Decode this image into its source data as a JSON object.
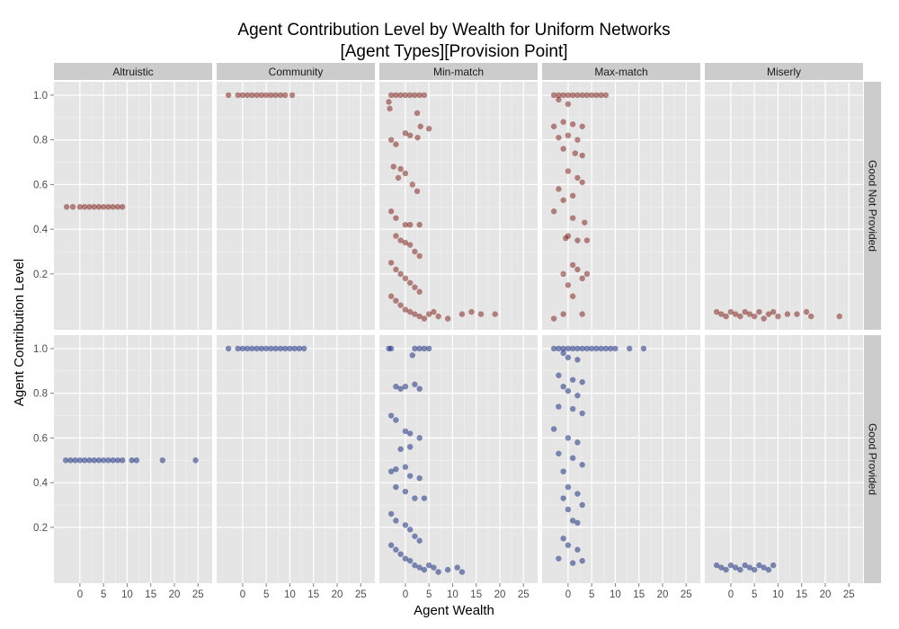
{
  "chart_data": {
    "type": "scatter",
    "title_line1": "Agent Contribution Level by Wealth for Uniform Networks",
    "title_line2": "[Agent Types][Provision Point]",
    "xlabel": "Agent Wealth",
    "ylabel": "Agent Contribution Level",
    "xlim": [
      -5.5,
      28
    ],
    "ylim": [
      -0.05,
      1.06
    ],
    "x_ticks": [
      0,
      5,
      10,
      15,
      20,
      25
    ],
    "x_tick_labels": [
      "0",
      "5",
      "10",
      "15",
      "20",
      "25"
    ],
    "y_ticks": [
      0.2,
      0.4,
      0.6,
      0.8,
      1.0
    ],
    "y_tick_labels": [
      "0.2",
      "0.4",
      "0.6",
      "0.8",
      "1.0"
    ],
    "grid": true,
    "columns": [
      "Altruistic",
      "Community",
      "Min-match",
      "Max-match",
      "Miserly"
    ],
    "rows": [
      "Good Not Provided",
      "Good Provided"
    ],
    "row_colors": [
      "#7a1610",
      "#0b1f78"
    ],
    "panels": [
      {
        "column": 0,
        "row": 0,
        "points": [
          [
            -2.8,
            0.5
          ],
          [
            -1.5,
            0.5
          ],
          [
            0,
            0.5
          ],
          [
            1,
            0.5
          ],
          [
            2,
            0.5
          ],
          [
            3,
            0.5
          ],
          [
            4,
            0.5
          ],
          [
            5,
            0.5
          ],
          [
            6,
            0.5
          ],
          [
            7,
            0.5
          ],
          [
            8,
            0.5
          ],
          [
            9,
            0.5
          ]
        ]
      },
      {
        "column": 1,
        "row": 0,
        "points": [
          [
            -3,
            1.0
          ],
          [
            -1,
            1.0
          ],
          [
            0,
            1.0
          ],
          [
            1,
            1.0
          ],
          [
            2,
            1.0
          ],
          [
            3,
            1.0
          ],
          [
            4,
            1.0
          ],
          [
            5,
            1.0
          ],
          [
            6,
            1.0
          ],
          [
            7,
            1.0
          ],
          [
            8,
            1.0
          ],
          [
            9,
            1.0
          ],
          [
            10.5,
            1.0
          ]
        ]
      },
      {
        "column": 2,
        "row": 0,
        "points": [
          [
            -3,
            1.0
          ],
          [
            -2,
            1.0
          ],
          [
            -1,
            1.0
          ],
          [
            0,
            1.0
          ],
          [
            1,
            1.0
          ],
          [
            2,
            1.0
          ],
          [
            3,
            1.0
          ],
          [
            4,
            1.0
          ],
          [
            -3.5,
            0.97
          ],
          [
            -3.3,
            0.94
          ],
          [
            2.5,
            0.92
          ],
          [
            -3,
            0.8
          ],
          [
            -2,
            0.78
          ],
          [
            1,
            0.82
          ],
          [
            0,
            0.83
          ],
          [
            3.2,
            0.86
          ],
          [
            5,
            0.85
          ],
          [
            2.6,
            0.81
          ],
          [
            -2.5,
            0.68
          ],
          [
            -1,
            0.67
          ],
          [
            -1.5,
            0.63
          ],
          [
            0,
            0.65
          ],
          [
            1.5,
            0.6
          ],
          [
            2.5,
            0.57
          ],
          [
            -3,
            0.48
          ],
          [
            -2,
            0.45
          ],
          [
            0,
            0.42
          ],
          [
            1,
            0.42
          ],
          [
            3,
            0.42
          ],
          [
            -2,
            0.37
          ],
          [
            -1,
            0.35
          ],
          [
            0,
            0.34
          ],
          [
            1,
            0.33
          ],
          [
            2,
            0.3
          ],
          [
            3,
            0.28
          ],
          [
            -3,
            0.25
          ],
          [
            -2,
            0.22
          ],
          [
            -1,
            0.2
          ],
          [
            0,
            0.18
          ],
          [
            1,
            0.16
          ],
          [
            2,
            0.14
          ],
          [
            3,
            0.12
          ],
          [
            -3,
            0.1
          ],
          [
            -2,
            0.08
          ],
          [
            -1,
            0.06
          ],
          [
            0,
            0.04
          ],
          [
            1,
            0.03
          ],
          [
            2,
            0.02
          ],
          [
            3,
            0.01
          ],
          [
            4,
            0.0
          ],
          [
            5,
            0.02
          ],
          [
            6,
            0.03
          ],
          [
            7,
            0.01
          ],
          [
            9,
            0.0
          ],
          [
            12,
            0.02
          ],
          [
            14,
            0.03
          ],
          [
            16,
            0.02
          ],
          [
            19,
            0.02
          ]
        ]
      },
      {
        "column": 3,
        "row": 0,
        "points": [
          [
            -3,
            1.0
          ],
          [
            -2,
            1.0
          ],
          [
            -1,
            1.0
          ],
          [
            0,
            1.0
          ],
          [
            1,
            1.0
          ],
          [
            2,
            1.0
          ],
          [
            3,
            1.0
          ],
          [
            4,
            1.0
          ],
          [
            5,
            1.0
          ],
          [
            6,
            1.0
          ],
          [
            7,
            1.0
          ],
          [
            8,
            1.0
          ],
          [
            -2,
            0.98
          ],
          [
            0,
            0.96
          ],
          [
            -3,
            0.86
          ],
          [
            -1,
            0.88
          ],
          [
            1,
            0.87
          ],
          [
            3,
            0.86
          ],
          [
            0,
            0.82
          ],
          [
            -2,
            0.81
          ],
          [
            2,
            0.8
          ],
          [
            -1,
            0.76
          ],
          [
            1.5,
            0.74
          ],
          [
            3,
            0.73
          ],
          [
            0,
            0.66
          ],
          [
            2,
            0.63
          ],
          [
            -2,
            0.58
          ],
          [
            1,
            0.55
          ],
          [
            3,
            0.61
          ],
          [
            -1,
            0.53
          ],
          [
            -3,
            0.48
          ],
          [
            1,
            0.45
          ],
          [
            3.5,
            0.43
          ],
          [
            0,
            0.37
          ],
          [
            -0.5,
            0.36
          ],
          [
            2,
            0.35
          ],
          [
            4,
            0.35
          ],
          [
            1,
            0.24
          ],
          [
            2,
            0.22
          ],
          [
            -1,
            0.2
          ],
          [
            3,
            0.18
          ],
          [
            4,
            0.2
          ],
          [
            0,
            0.15
          ],
          [
            -3,
            0.0
          ],
          [
            -1,
            0.02
          ],
          [
            1,
            0.1
          ],
          [
            3,
            0.02
          ]
        ]
      },
      {
        "column": 4,
        "row": 0,
        "points": [
          [
            -3,
            0.03
          ],
          [
            -2,
            0.02
          ],
          [
            -1,
            0.01
          ],
          [
            0,
            0.03
          ],
          [
            1,
            0.02
          ],
          [
            2,
            0.01
          ],
          [
            3,
            0.03
          ],
          [
            4,
            0.02
          ],
          [
            5,
            0.01
          ],
          [
            6,
            0.03
          ],
          [
            7,
            0.0
          ],
          [
            8,
            0.02
          ],
          [
            9,
            0.03
          ],
          [
            10,
            0.01
          ],
          [
            12,
            0.02
          ],
          [
            14,
            0.02
          ],
          [
            16,
            0.03
          ],
          [
            17,
            0.01
          ],
          [
            23,
            0.01
          ]
        ]
      },
      {
        "column": 0,
        "row": 1,
        "points": [
          [
            -3,
            0.5
          ],
          [
            -2,
            0.5
          ],
          [
            -1,
            0.5
          ],
          [
            0,
            0.5
          ],
          [
            1,
            0.5
          ],
          [
            2,
            0.5
          ],
          [
            3,
            0.5
          ],
          [
            4,
            0.5
          ],
          [
            5,
            0.5
          ],
          [
            6,
            0.5
          ],
          [
            7,
            0.5
          ],
          [
            8,
            0.5
          ],
          [
            9,
            0.5
          ],
          [
            11,
            0.5
          ],
          [
            12,
            0.5
          ],
          [
            17.5,
            0.5
          ],
          [
            24.5,
            0.5
          ]
        ]
      },
      {
        "column": 1,
        "row": 1,
        "points": [
          [
            -3,
            1.0
          ],
          [
            -1,
            1.0
          ],
          [
            0,
            1.0
          ],
          [
            1,
            1.0
          ],
          [
            2,
            1.0
          ],
          [
            3,
            1.0
          ],
          [
            4,
            1.0
          ],
          [
            5,
            1.0
          ],
          [
            6,
            1.0
          ],
          [
            7,
            1.0
          ],
          [
            8,
            1.0
          ],
          [
            9,
            1.0
          ],
          [
            10,
            1.0
          ],
          [
            11,
            1.0
          ],
          [
            12,
            1.0
          ],
          [
            13,
            1.0
          ]
        ]
      },
      {
        "column": 2,
        "row": 1,
        "points": [
          [
            -3.5,
            1.0
          ],
          [
            -3,
            1.0
          ],
          [
            2,
            1.0
          ],
          [
            3,
            1.0
          ],
          [
            4,
            1.0
          ],
          [
            5,
            1.0
          ],
          [
            1.5,
            0.97
          ],
          [
            -2,
            0.83
          ],
          [
            -1,
            0.82
          ],
          [
            0,
            0.83
          ],
          [
            2,
            0.84
          ],
          [
            3,
            0.82
          ],
          [
            -3,
            0.7
          ],
          [
            -2,
            0.68
          ],
          [
            0,
            0.63
          ],
          [
            1,
            0.62
          ],
          [
            3,
            0.6
          ],
          [
            -1,
            0.55
          ],
          [
            1,
            0.56
          ],
          [
            -3,
            0.45
          ],
          [
            -2,
            0.46
          ],
          [
            0,
            0.47
          ],
          [
            1,
            0.43
          ],
          [
            3,
            0.42
          ],
          [
            -2,
            0.38
          ],
          [
            0,
            0.36
          ],
          [
            2,
            0.33
          ],
          [
            4,
            0.33
          ],
          [
            -3,
            0.26
          ],
          [
            -2,
            0.23
          ],
          [
            0,
            0.21
          ],
          [
            1,
            0.19
          ],
          [
            2,
            0.16
          ],
          [
            3,
            0.14
          ],
          [
            -3,
            0.12
          ],
          [
            -2,
            0.1
          ],
          [
            -1,
            0.08
          ],
          [
            0,
            0.06
          ],
          [
            1,
            0.05
          ],
          [
            2,
            0.03
          ],
          [
            3,
            0.02
          ],
          [
            4,
            0.01
          ],
          [
            5,
            0.03
          ],
          [
            6,
            0.02
          ],
          [
            7,
            0.0
          ],
          [
            9,
            0.01
          ],
          [
            11,
            0.02
          ],
          [
            12,
            0.0
          ]
        ]
      },
      {
        "column": 3,
        "row": 1,
        "points": [
          [
            -3,
            1.0
          ],
          [
            -2,
            1.0
          ],
          [
            -1,
            1.0
          ],
          [
            0,
            1.0
          ],
          [
            1,
            1.0
          ],
          [
            2,
            1.0
          ],
          [
            3,
            1.0
          ],
          [
            4,
            1.0
          ],
          [
            5,
            1.0
          ],
          [
            6,
            1.0
          ],
          [
            7,
            1.0
          ],
          [
            8,
            1.0
          ],
          [
            9,
            1.0
          ],
          [
            10,
            1.0
          ],
          [
            13,
            1.0
          ],
          [
            16,
            1.0
          ],
          [
            -1,
            0.98
          ],
          [
            0,
            0.96
          ],
          [
            2,
            0.95
          ],
          [
            -2,
            0.88
          ],
          [
            1,
            0.86
          ],
          [
            3,
            0.85
          ],
          [
            -1,
            0.83
          ],
          [
            0,
            0.81
          ],
          [
            2,
            0.79
          ],
          [
            -2,
            0.74
          ],
          [
            1,
            0.73
          ],
          [
            3,
            0.71
          ],
          [
            -3,
            0.64
          ],
          [
            0,
            0.6
          ],
          [
            2,
            0.58
          ],
          [
            -2,
            0.53
          ],
          [
            1,
            0.51
          ],
          [
            3,
            0.48
          ],
          [
            -1,
            0.45
          ],
          [
            0,
            0.38
          ],
          [
            2,
            0.35
          ],
          [
            -1,
            0.33
          ],
          [
            3,
            0.3
          ],
          [
            0,
            0.28
          ],
          [
            1,
            0.23
          ],
          [
            2,
            0.22
          ],
          [
            -1,
            0.15
          ],
          [
            0,
            0.12
          ],
          [
            2,
            0.1
          ],
          [
            -2,
            0.06
          ],
          [
            1,
            0.04
          ],
          [
            3,
            0.05
          ]
        ]
      },
      {
        "column": 4,
        "row": 1,
        "points": [
          [
            -3,
            0.03
          ],
          [
            -2,
            0.02
          ],
          [
            -1,
            0.01
          ],
          [
            0,
            0.03
          ],
          [
            1,
            0.02
          ],
          [
            2,
            0.01
          ],
          [
            3,
            0.03
          ],
          [
            4,
            0.02
          ],
          [
            5,
            0.01
          ],
          [
            6,
            0.03
          ],
          [
            7,
            0.02
          ],
          [
            8,
            0.01
          ],
          [
            9,
            0.03
          ]
        ]
      }
    ]
  }
}
